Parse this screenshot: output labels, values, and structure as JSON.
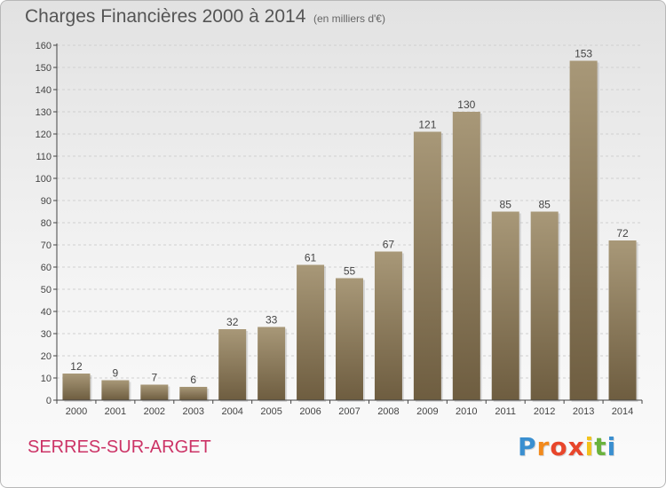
{
  "title": "Charges Financières 2000 à 2014",
  "subtitle": "(en milliers d'€)",
  "commune": "SERRES-SUR-ARGET",
  "logo": {
    "letters": [
      "P",
      "r",
      "o",
      "x",
      "i",
      "t",
      "i"
    ],
    "colors": [
      "#3a8fd0",
      "#f28a1c",
      "#e8462b",
      "#e8462b",
      "#f2c21c",
      "#6ab23c",
      "#3a8fd0"
    ]
  },
  "colors": {
    "bar_top": "#a89878",
    "bar_bottom": "#6e5d40",
    "axis": "#444444",
    "grid": "#d0d0d0"
  },
  "chart_data": {
    "type": "bar",
    "categories": [
      "2000",
      "2001",
      "2002",
      "2003",
      "2004",
      "2005",
      "2006",
      "2007",
      "2008",
      "2009",
      "2010",
      "2011",
      "2012",
      "2013",
      "2014"
    ],
    "values": [
      12,
      9,
      7,
      6,
      32,
      33,
      61,
      55,
      67,
      121,
      130,
      85,
      85,
      153,
      72
    ],
    "ylim": [
      0,
      160
    ],
    "yticks": [
      0,
      10,
      20,
      30,
      40,
      50,
      60,
      70,
      80,
      90,
      100,
      110,
      120,
      130,
      140,
      150,
      160
    ],
    "grid": "horizontal dashed",
    "legend": "none"
  }
}
